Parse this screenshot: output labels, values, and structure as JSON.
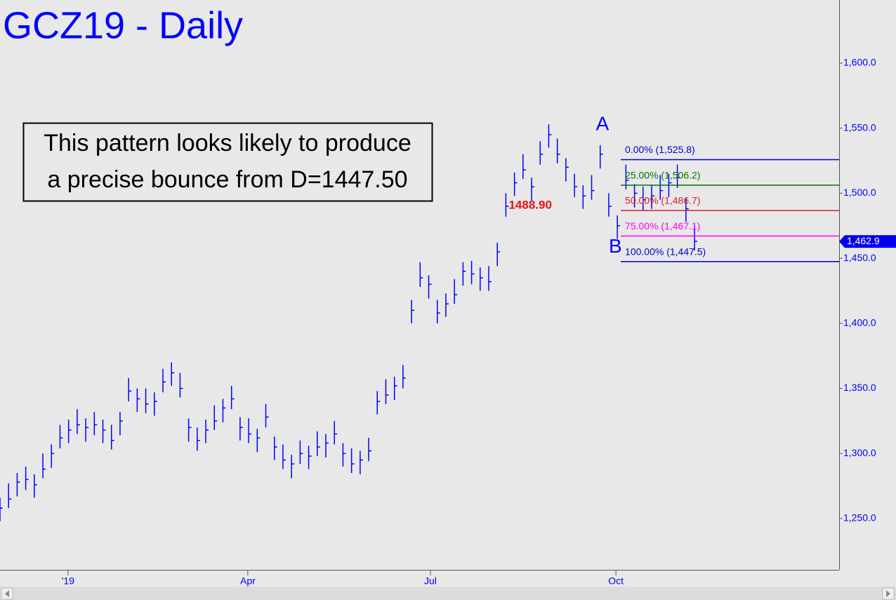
{
  "chart_data": {
    "type": "ohlc",
    "title": "GCZ19 - Daily",
    "color": "#0000ff",
    "x": [
      0,
      3,
      6,
      9,
      12,
      15,
      18,
      21,
      24,
      27,
      30,
      33,
      36,
      39,
      42,
      45,
      48,
      51,
      54,
      57,
      60,
      63,
      66,
      69,
      72,
      75,
      78,
      81,
      84,
      87,
      90,
      93,
      96,
      99,
      102,
      105,
      108,
      111,
      114,
      117,
      120,
      123,
      126,
      129,
      132,
      135,
      138,
      141,
      144,
      147,
      150,
      153,
      156,
      159,
      162,
      165,
      168,
      171,
      174,
      177,
      180,
      183,
      186,
      189,
      192,
      195,
      198,
      201,
      204,
      207,
      210,
      213,
      216,
      219,
      222,
      225,
      228,
      231,
      234,
      237,
      240,
      243
    ],
    "high": [
      1266,
      1277,
      1285,
      1290,
      1284,
      1300,
      1307,
      1322,
      1326,
      1334,
      1327,
      1332,
      1326,
      1322,
      1332,
      1358,
      1350,
      1350,
      1347,
      1365,
      1370,
      1362,
      1327,
      1320,
      1326,
      1337,
      1342,
      1352,
      1328,
      1327,
      1319,
      1338,
      1313,
      1307,
      1299,
      1310,
      1306,
      1317,
      1315,
      1325,
      1308,
      1304,
      1302,
      1312,
      1348,
      1357,
      1359,
      1368,
      1418,
      1447,
      1437,
      1418,
      1423,
      1434,
      1447,
      1448,
      1443,
      1444,
      1462,
      1500,
      1516,
      1530,
      1512,
      1540,
      1553,
      1542,
      1527,
      1515,
      1506,
      1514,
      1537,
      1500,
      1483,
      1522,
      1507,
      1505,
      1506,
      1514,
      1515,
      1522,
      1496,
      1475
    ],
    "low": [
      1248,
      1258,
      1267,
      1272,
      1266,
      1281,
      1289,
      1304,
      1308,
      1315,
      1309,
      1314,
      1308,
      1303,
      1314,
      1340,
      1332,
      1331,
      1329,
      1347,
      1352,
      1343,
      1309,
      1302,
      1308,
      1318,
      1324,
      1334,
      1310,
      1308,
      1301,
      1320,
      1295,
      1288,
      1281,
      1292,
      1288,
      1298,
      1297,
      1307,
      1290,
      1285,
      1284,
      1294,
      1330,
      1338,
      1341,
      1350,
      1400,
      1428,
      1419,
      1400,
      1405,
      1415,
      1429,
      1430,
      1425,
      1425,
      1444,
      1482,
      1498,
      1511,
      1494,
      1522,
      1535,
      1523,
      1509,
      1497,
      1488,
      1495,
      1519,
      1482,
      1465,
      1503,
      1489,
      1487,
      1488,
      1495,
      1497,
      1504,
      1478,
      1456
    ],
    "close": [
      1258,
      1265,
      1278,
      1280,
      1276,
      1288,
      1300,
      1312,
      1318,
      1322,
      1320,
      1322,
      1318,
      1310,
      1325,
      1348,
      1342,
      1338,
      1340,
      1355,
      1362,
      1350,
      1320,
      1310,
      1318,
      1325,
      1335,
      1342,
      1320,
      1315,
      1312,
      1328,
      1305,
      1295,
      1292,
      1300,
      1298,
      1305,
      1308,
      1315,
      1300,
      1292,
      1295,
      1302,
      1340,
      1345,
      1352,
      1358,
      1410,
      1435,
      1430,
      1408,
      1415,
      1422,
      1440,
      1438,
      1435,
      1432,
      1455,
      1490,
      1508,
      1518,
      1505,
      1530,
      1545,
      1530,
      1520,
      1505,
      1498,
      1502,
      1530,
      1490,
      1475,
      1510,
      1500,
      1495,
      1498,
      1502,
      1508,
      1512,
      1488,
      1463
    ],
    "xlim": [
      0,
      293.6
    ],
    "xticks": [
      {
        "value": 23.8,
        "label": "'19"
      },
      {
        "value": 86.7,
        "label": "Apr"
      },
      {
        "value": 150.6,
        "label": "Jul"
      },
      {
        "value": 215.5,
        "label": "Oct"
      }
    ],
    "ylim": [
      1210.6,
      1648.5
    ],
    "yticks": [
      {
        "value": 1250,
        "label": "1,250.0"
      },
      {
        "value": 1300,
        "label": "1,300.0"
      },
      {
        "value": 1350,
        "label": "1,350.0"
      },
      {
        "value": 1400,
        "label": "1,400.0"
      },
      {
        "value": 1450,
        "label": "1,450.0"
      },
      {
        "value": 1500,
        "label": "1,500.0"
      },
      {
        "value": 1550,
        "label": "1,550.0"
      },
      {
        "value": 1600,
        "label": "1,600.0"
      }
    ],
    "fib_start_x": 217.2,
    "fib_levels": [
      {
        "value": 1525.8,
        "label": "0.00% (1,525.8)",
        "color": "#0000cc"
      },
      {
        "value": 1506.2,
        "label": "25.00% (1,506.2)",
        "color": "#007700"
      },
      {
        "value": 1486.7,
        "label": "50.00% (1,486.7)",
        "color": "#cc2233"
      },
      {
        "value": 1467.1,
        "label": "75.00% (1,467.1)",
        "color": "#ff00ff"
      },
      {
        "value": 1447.5,
        "label": "100.00% (1,447.5)",
        "color": "#0000cc"
      }
    ],
    "points": [
      {
        "label": "A",
        "x": 210.8,
        "y": 1545
      },
      {
        "label": "B",
        "x": 215.3,
        "y": 1466
      }
    ],
    "price_note": {
      "label": "1488.90",
      "x": 177.5,
      "y": 1488.9,
      "color": "#ee1111"
    },
    "last_price": {
      "value": 1462.9,
      "label": "1,462.9"
    },
    "comment": [
      "This pattern looks likely to produce",
      "a precise bounce from D=1447.50"
    ]
  }
}
